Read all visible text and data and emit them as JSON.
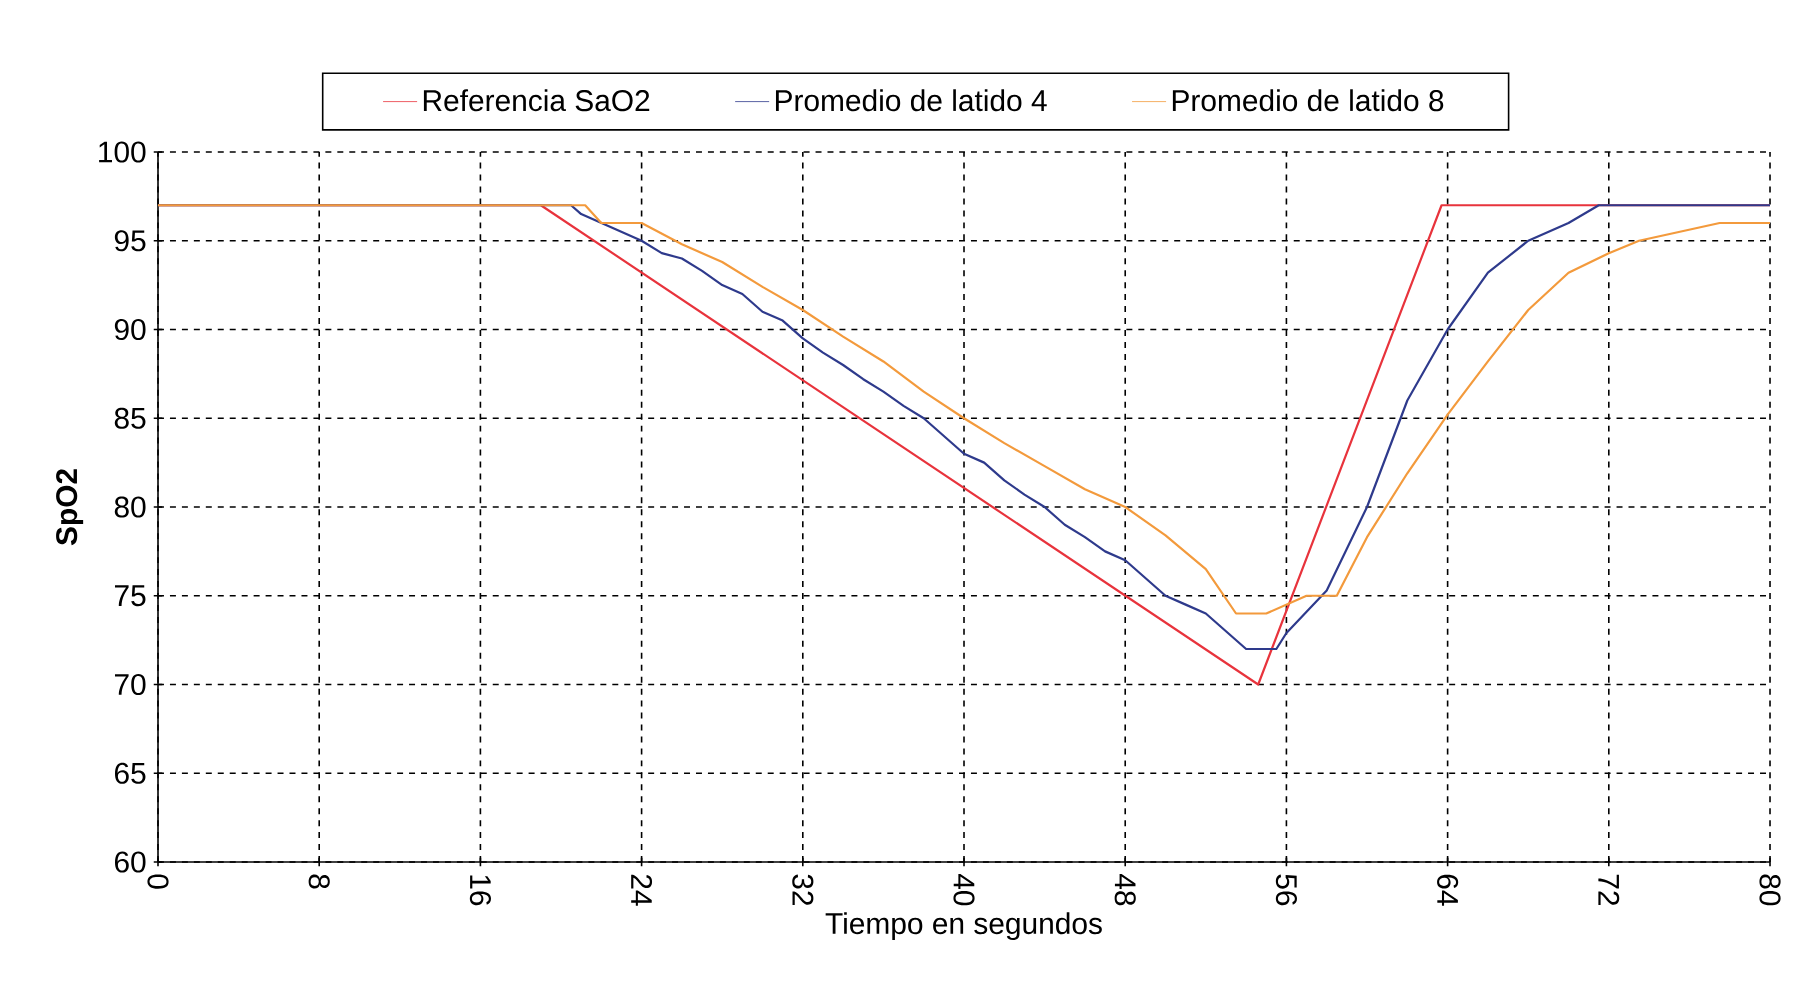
{
  "chart_data": {
    "type": "line",
    "xlabel": "Tiempo en segundos",
    "ylabel": "SpO2",
    "xlim": [
      0,
      80
    ],
    "ylim": [
      60,
      100
    ],
    "xticks": [
      0,
      8,
      16,
      24,
      32,
      40,
      48,
      56,
      64,
      72,
      80
    ],
    "yticks": [
      60,
      65,
      70,
      75,
      80,
      85,
      90,
      95,
      100
    ],
    "grid": true,
    "legend": "top",
    "series": [
      {
        "name": "Referencia SaO2",
        "color": "#e8333c",
        "x": [
          0,
          19,
          54.6,
          63.7,
          80
        ],
        "values": [
          97,
          97,
          70,
          97,
          97
        ]
      },
      {
        "name": "Promedio de latido 4",
        "color": "#2e3a8c",
        "x": [
          0,
          20.5,
          21,
          22,
          23,
          24,
          25,
          26,
          27,
          28,
          29,
          30,
          31,
          32,
          33,
          34,
          35,
          36,
          37,
          38,
          39,
          40,
          41,
          42,
          43,
          44,
          45,
          46,
          47,
          48,
          49,
          50,
          51,
          52,
          53,
          54,
          55.5,
          56,
          58,
          60,
          62,
          64,
          66,
          68,
          70,
          71.5,
          80
        ],
        "values": [
          97,
          97,
          96.5,
          96,
          95.5,
          95,
          94.3,
          94,
          93.3,
          92.5,
          92,
          91,
          90.5,
          89.5,
          88.7,
          88,
          87.2,
          86.5,
          85.7,
          85,
          84,
          83,
          82.5,
          81.5,
          80.7,
          80,
          79,
          78.3,
          77.5,
          77,
          76,
          75,
          74.5,
          74,
          73,
          72,
          72,
          72.9,
          75.3,
          80,
          86,
          90,
          93.2,
          95,
          96,
          97,
          97
        ]
      },
      {
        "name": "Promedio de latido 8",
        "color": "#f39a3c",
        "x": [
          0,
          21.2,
          22,
          24,
          26,
          28,
          30,
          32,
          34,
          36,
          38,
          40,
          42,
          44,
          46,
          48,
          50,
          52,
          53.5,
          55,
          56,
          57,
          58.5,
          60,
          62,
          64,
          66,
          68,
          70,
          72,
          73.5,
          77.5,
          80
        ],
        "values": [
          97,
          97,
          96,
          96,
          94.8,
          93.8,
          92.4,
          91.1,
          89.6,
          88.2,
          86.5,
          85,
          83.6,
          82.3,
          81,
          80,
          78.4,
          76.5,
          74,
          74,
          74.5,
          75,
          75,
          78.3,
          81.9,
          85.2,
          88.2,
          91.1,
          93.2,
          94.3,
          95,
          96,
          96
        ]
      }
    ]
  }
}
